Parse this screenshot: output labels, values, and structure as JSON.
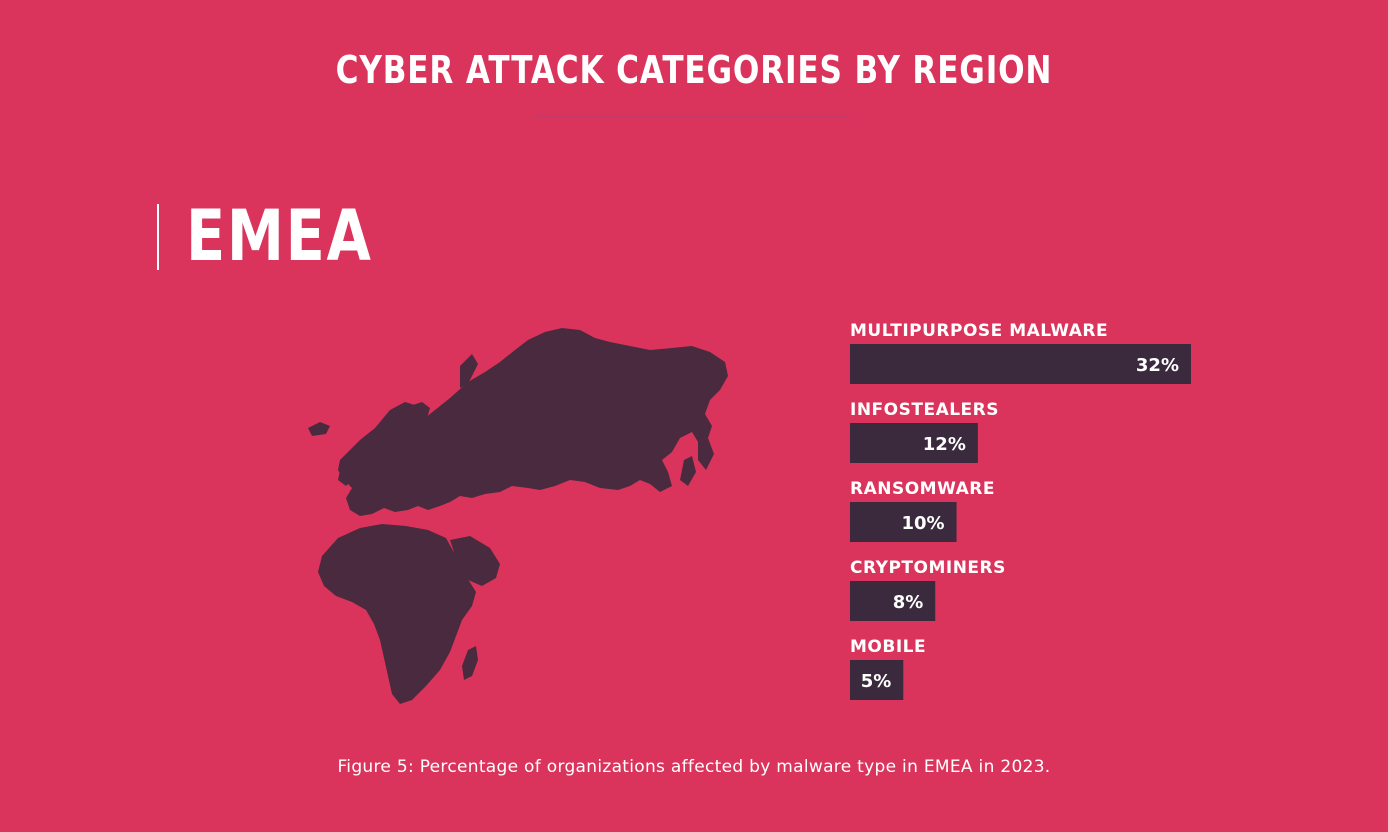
{
  "colors": {
    "background": "#da345c",
    "text": "#ffffff",
    "bar": "#3b2a3d",
    "map": "#4a2a3e",
    "accent_line": "#c43a6e"
  },
  "header": {
    "title": "CYBER ATTACK CATEGORIES BY REGION"
  },
  "region": {
    "name": "EMEA",
    "map_icon": "emea-map-icon"
  },
  "chart_data": {
    "type": "bar",
    "orientation": "horizontal",
    "categories": [
      "MULTIPURPOSE MALWARE",
      "INFOSTEALERS",
      "RANSOMWARE",
      "CRYPTOMINERS",
      "MOBILE"
    ],
    "values": [
      32,
      12,
      10,
      8,
      5
    ],
    "value_labels": [
      "32%",
      "12%",
      "10%",
      "8%",
      "5%"
    ],
    "unit": "%",
    "xlim": [
      0,
      32
    ],
    "title": "",
    "xlabel": "",
    "ylabel": "",
    "grid": false,
    "legend": "none"
  },
  "caption": "Figure 5: Percentage of organizations affected by malware type in EMEA in 2023."
}
